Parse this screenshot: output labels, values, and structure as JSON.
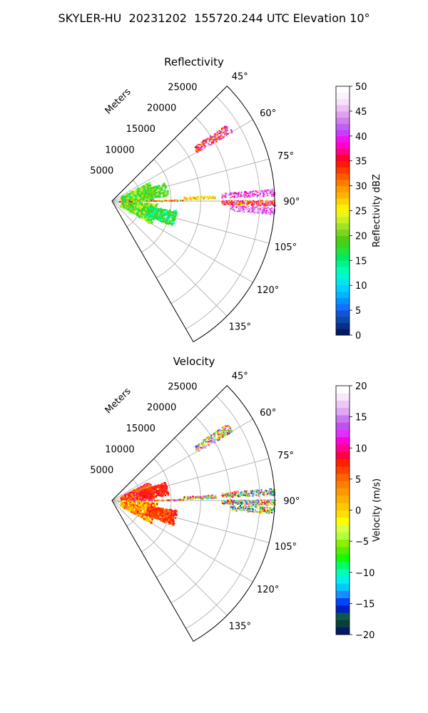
{
  "figure": {
    "title": "SKYLER-HU  20231202  155720.244 UTC Elevation 10°"
  },
  "chart_data": [
    {
      "type": "heatmap",
      "projection": "polar-sector",
      "title": "Reflectivity",
      "theta_range_deg": [
        45,
        150
      ],
      "theta_ticks": [
        "45°",
        "60°",
        "75°",
        "90°",
        "105°",
        "120°",
        "135°"
      ],
      "theta_tick_values": [
        45,
        60,
        75,
        90,
        105,
        120,
        135
      ],
      "r_label": "Meters",
      "r_max": 27500,
      "r_ticks": [
        "5000",
        "10000",
        "15000",
        "20000",
        "25000"
      ],
      "r_tick_values": [
        5000,
        10000,
        15000,
        20000,
        25000
      ],
      "grid": true,
      "colorbar": {
        "label": "Reflectivity dBZ",
        "min": 0,
        "max": 50,
        "ticks": [
          "0",
          "5",
          "10",
          "15",
          "20",
          "25",
          "30",
          "35",
          "40",
          "45",
          "50"
        ],
        "tick_values": [
          0,
          5,
          10,
          15,
          20,
          25,
          30,
          35,
          40,
          45,
          50
        ],
        "colors": [
          "#001a66",
          "#0a2f8a",
          "#0b4aa8",
          "#1652d6",
          "#1170ff",
          "#0093ff",
          "#00b4ff",
          "#00cfff",
          "#00e5ee",
          "#00f7d2",
          "#00ffb0",
          "#00f58c",
          "#00ea64",
          "#1fe53c",
          "#3ad61c",
          "#55cc11",
          "#7ed321",
          "#a0e224",
          "#c8ef21",
          "#eaf51a",
          "#fff200",
          "#ffd400",
          "#ffb400",
          "#ff9a00",
          "#ff7c00",
          "#ff5a00",
          "#ff3a00",
          "#ff1a00",
          "#ff0030",
          "#ff0080",
          "#ff00c8",
          "#f010f0",
          "#c83cff",
          "#c060f0",
          "#d080ec",
          "#e0a0f0",
          "#ecc0f4",
          "#f6e0fa",
          "#fcf2fd",
          "#ffffff"
        ]
      },
      "echo_regions": [
        {
          "theta": [
            56,
            60
          ],
          "r": [
            16500,
            23500
          ],
          "level": "30-45 dBZ"
        },
        {
          "theta": [
            85,
            89
          ],
          "r": [
            18500,
            27500
          ],
          "level": "38-48 dBZ"
        },
        {
          "theta": [
            89.5,
            91.5
          ],
          "r": [
            18500,
            27500
          ],
          "level": "25-45 dBZ"
        },
        {
          "theta": [
            92,
            95
          ],
          "r": [
            20000,
            27500
          ],
          "level": "40-46 dBZ"
        },
        {
          "theta": [
            60,
            120
          ],
          "r": [
            0,
            11000
          ],
          "level": "10-25 dBZ"
        }
      ]
    },
    {
      "type": "heatmap",
      "projection": "polar-sector",
      "title": "Velocity",
      "theta_range_deg": [
        45,
        150
      ],
      "theta_ticks": [
        "45°",
        "60°",
        "75°",
        "90°",
        "105°",
        "120°",
        "135°"
      ],
      "theta_tick_values": [
        45,
        60,
        75,
        90,
        105,
        120,
        135
      ],
      "r_label": "Meters",
      "r_max": 27500,
      "r_ticks": [
        "5000",
        "10000",
        "15000",
        "20000",
        "25000"
      ],
      "r_tick_values": [
        5000,
        10000,
        15000,
        20000,
        25000
      ],
      "grid": true,
      "colorbar": {
        "label": "Velocity (m/s)",
        "min": -20,
        "max": 20,
        "ticks": [
          "−20",
          "−15",
          "−10",
          "−5",
          "0",
          "5",
          "10",
          "15",
          "20"
        ],
        "tick_values": [
          -20,
          -15,
          -10,
          -5,
          0,
          5,
          10,
          15,
          20
        ],
        "colors": [
          "#001a66",
          "#0b3d3a",
          "#0a5a46",
          "#0021c0",
          "#0044ff",
          "#1a8cff",
          "#00c8ff",
          "#00f0f0",
          "#00ffb4",
          "#00ff64",
          "#10ff00",
          "#55ee00",
          "#8af000",
          "#b4ff3c",
          "#d8ff40",
          "#ffff00",
          "#ffe000",
          "#ffc800",
          "#ffb000",
          "#ff9800",
          "#ff8000",
          "#ff6400",
          "#ff4000",
          "#ff2000",
          "#ff0040",
          "#ff0090",
          "#ff00d8",
          "#e030ff",
          "#c050f0",
          "#c878f0",
          "#e0a8f4",
          "#ecc8f8",
          "#f8e8fc",
          "#ffffff"
        ]
      },
      "echo_regions": [
        {
          "theta": [
            56,
            60
          ],
          "r": [
            16500,
            23500
          ],
          "level": "mixed ±20 m/s"
        },
        {
          "theta": [
            85,
            95
          ],
          "r": [
            18500,
            27500
          ],
          "level": "mixed ±20 m/s"
        },
        {
          "theta": [
            60,
            90
          ],
          "r": [
            0,
            11000
          ],
          "level": "10-12 m/s"
        },
        {
          "theta": [
            90,
            120
          ],
          "r": [
            0,
            11000
          ],
          "level": "3-10 m/s"
        }
      ]
    }
  ]
}
